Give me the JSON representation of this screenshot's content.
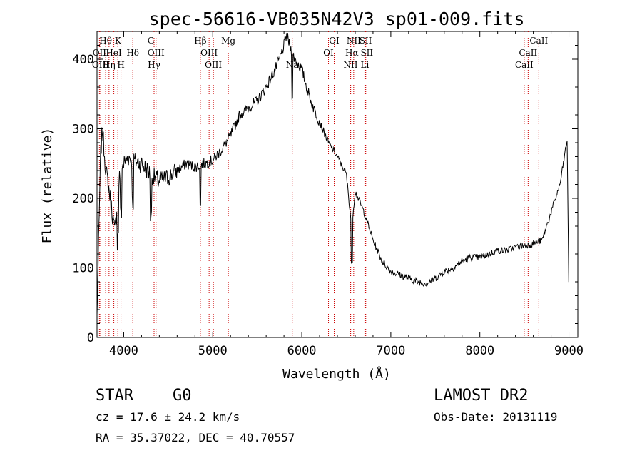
{
  "chart_data": {
    "type": "line",
    "title": "spec-56616-VB035N42V3_sp01-009.fits",
    "xlabel": "Wavelength (Å)",
    "ylabel": "Flux (relative)",
    "xlim": [
      3700,
      9100
    ],
    "ylim": [
      0,
      440
    ],
    "x_ticks": [
      4000,
      5000,
      6000,
      7000,
      8000,
      9000
    ],
    "y_ticks": [
      0,
      100,
      200,
      300,
      400
    ],
    "grid": false,
    "line_color": "#000000",
    "marker_color": "#cc0000",
    "series": [
      {
        "x": [
          3700,
          3740,
          3760,
          3800,
          3850,
          3900,
          3950,
          4000,
          4050,
          4100,
          4200,
          4300,
          4400,
          4500,
          4600,
          4700,
          4800,
          4900,
          5000,
          5100,
          5200,
          5300,
          5400,
          5500,
          5600,
          5700,
          5750,
          5800,
          5830,
          5900,
          6000,
          6100,
          6200,
          6300,
          6400,
          6500,
          6560,
          6600,
          6700,
          6800,
          6900,
          7000,
          7100,
          7200,
          7300,
          7400,
          7500,
          7600,
          7700,
          7800,
          7900,
          8000,
          8100,
          8200,
          8300,
          8400,
          8500,
          8600,
          8700,
          8750,
          8800,
          8850,
          8900,
          8950,
          8980,
          9000
        ],
        "y": [
          30,
          260,
          300,
          240,
          200,
          150,
          230,
          250,
          260,
          255,
          250,
          235,
          225,
          230,
          240,
          250,
          245,
          250,
          255,
          270,
          290,
          320,
          330,
          340,
          360,
          385,
          400,
          420,
          435,
          405,
          385,
          340,
          310,
          280,
          260,
          235,
          160,
          210,
          180,
          140,
          110,
          95,
          90,
          85,
          80,
          78,
          85,
          95,
          100,
          110,
          115,
          115,
          120,
          125,
          125,
          130,
          132,
          135,
          140,
          160,
          180,
          200,
          220,
          260,
          285,
          60
        ]
      }
    ],
    "line_markers": [
      {
        "label": "Hθ",
        "wavelength": 3797,
        "row": 0
      },
      {
        "label": "OII",
        "wavelength": 3727,
        "row": 1
      },
      {
        "label": "OIII",
        "wavelength": 3740,
        "row": 2
      },
      {
        "label": "Hη",
        "wavelength": 3835,
        "row": 2
      },
      {
        "label": "HeI",
        "wavelength": 3889,
        "row": 1
      },
      {
        "label": "K",
        "wavelength": 3934,
        "row": 0
      },
      {
        "label": "H",
        "wavelength": 3969,
        "row": 2
      },
      {
        "label": "Hδ",
        "wavelength": 4102,
        "row": 1
      },
      {
        "label": "G",
        "wavelength": 4305,
        "row": 0
      },
      {
        "label": "OIII",
        "wavelength": 4363,
        "row": 1
      },
      {
        "label": "Hγ",
        "wavelength": 4341,
        "row": 2
      },
      {
        "label": "Hβ",
        "wavelength": 4861,
        "row": 0
      },
      {
        "label": "OIII",
        "wavelength": 4959,
        "row": 1
      },
      {
        "label": "OIII",
        "wavelength": 5007,
        "row": 2
      },
      {
        "label": "Mg",
        "wavelength": 5175,
        "row": 0
      },
      {
        "label": "Na",
        "wavelength": 5893,
        "row": 2
      },
      {
        "label": "OI",
        "wavelength": 6300,
        "row": 1
      },
      {
        "label": "OI",
        "wavelength": 6364,
        "row": 0
      },
      {
        "label": "NII",
        "wavelength": 6548,
        "row": 2
      },
      {
        "label": "Hα",
        "wavelength": 6563,
        "row": 1
      },
      {
        "label": "NII",
        "wavelength": 6583,
        "row": 0
      },
      {
        "label": "SII",
        "wavelength": 6717,
        "row": 0
      },
      {
        "label": "SII",
        "wavelength": 6731,
        "row": 1
      },
      {
        "label": "Li",
        "wavelength": 6708,
        "row": 2
      },
      {
        "label": "CaII",
        "wavelength": 8498,
        "row": 2
      },
      {
        "label": "CaII",
        "wavelength": 8542,
        "row": 1
      },
      {
        "label": "CaII",
        "wavelength": 8662,
        "row": 0
      }
    ]
  },
  "info": {
    "class": "STAR",
    "subclass": "G0",
    "survey": "LAMOST DR2",
    "cz": "cz = 17.6 ± 24.2 km/s",
    "obs_date": "Obs-Date: 20131119",
    "coords": "RA =  35.37022, DEC =  40.70557"
  }
}
